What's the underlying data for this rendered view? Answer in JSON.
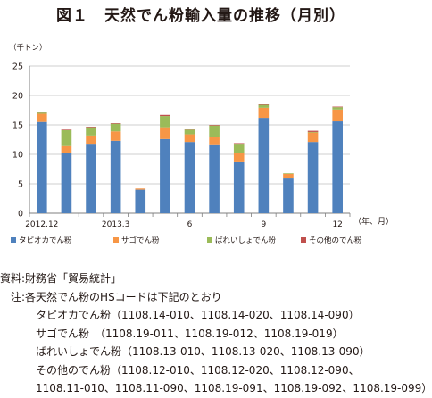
{
  "title": "図１　天然でん粉輸入量の推移（月別）",
  "chart_data": {
    "type": "bar",
    "stacked": true,
    "unit_label": "（千トン）",
    "x_unit_label": "（年、月）",
    "ylim": [
      0,
      25
    ],
    "yticks": [
      "0",
      "5",
      "10",
      "15",
      "20",
      "25"
    ],
    "grid": true,
    "legend_position": "bottom",
    "categories": [
      "2012.12",
      "",
      "",
      "2013.3",
      "",
      "",
      "6",
      "",
      "",
      "9",
      "",
      "",
      "12"
    ],
    "series": [
      {
        "name": "タピオカでん粉",
        "color": "#4f81bd",
        "values": [
          15.5,
          10.3,
          11.8,
          12.3,
          4.0,
          12.6,
          12.1,
          11.7,
          8.8,
          16.2,
          5.9,
          12.1,
          15.6
        ]
      },
      {
        "name": "サゴでん粉",
        "color": "#f79646",
        "values": [
          1.4,
          1.1,
          1.4,
          1.6,
          0.2,
          2.0,
          1.3,
          1.3,
          1.4,
          1.7,
          0.8,
          1.6,
          2.0
        ]
      },
      {
        "name": "ばれいしょでん粉",
        "color": "#9bbb59",
        "values": [
          0.2,
          2.7,
          1.4,
          1.3,
          0.0,
          1.9,
          0.8,
          1.9,
          1.6,
          0.5,
          0.1,
          0.1,
          0.4
        ]
      },
      {
        "name": "その他のでん粉",
        "color": "#c0504d",
        "values": [
          0.1,
          0.1,
          0.1,
          0.1,
          0.0,
          0.2,
          0.1,
          0.1,
          0.1,
          0.1,
          0.0,
          0.2,
          0.1
        ]
      }
    ]
  },
  "notes": {
    "source": "資料:財務省「貿易統計」",
    "note_intro": "注:各天然でん粉のHSコードは下記のとおり",
    "line_tapioca": "タピオカでん粉（1108.14-010、1108.14-020、1108.14-090）",
    "line_sago": "サゴでん粉　（1108.19-011、1108.19-012、1108.19-019）",
    "line_potato": "ばれいしょでん粉（1108.13-010、1108.13-020、1108.13-090）",
    "line_other_1": "その他のでん粉（1108.12-010、1108.12-020、1108.12-090、",
    "line_other_2": "1108.11-010、1108.11-090、1108.19-091、1108.19-092、1108.19-099）"
  }
}
